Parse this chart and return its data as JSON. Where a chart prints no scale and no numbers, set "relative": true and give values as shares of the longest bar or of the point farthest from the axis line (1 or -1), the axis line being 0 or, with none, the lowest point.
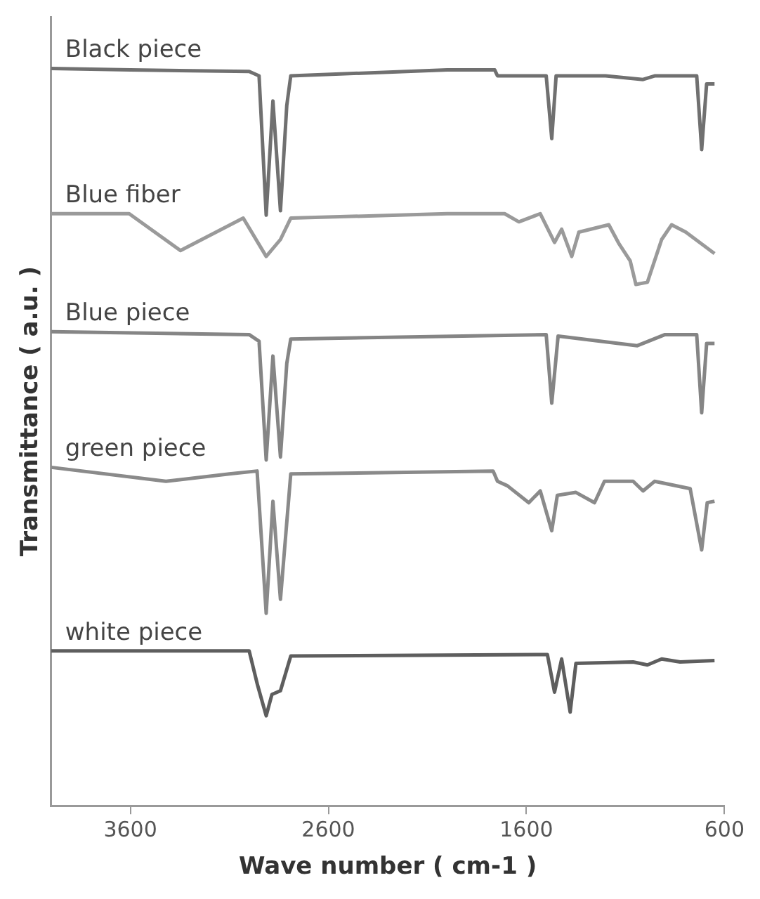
{
  "chart_data": {
    "type": "line",
    "xlabel": "Wave number ( cm-1 )",
    "ylabel": "Transmittance ( a.u. )",
    "relative": true,
    "xlim": [
      4000,
      600
    ],
    "xticks": [
      3600,
      2600,
      1600,
      600
    ],
    "grid": false,
    "legend": false,
    "marker": "none",
    "line_style": "solid",
    "series": [
      {
        "name": "Black piece",
        "color": "#707070",
        "x": [
          4000,
          3600,
          3000,
          2950,
          2914,
          2880,
          2842,
          2810,
          2790,
          2000,
          1760,
          1746,
          1500,
          1472,
          1450,
          1200,
          1011,
          950,
          740,
          715,
          690,
          650
        ],
        "values": [
          1.0,
          0.998,
          0.996,
          0.99,
          0.801,
          0.956,
          0.807,
          0.95,
          0.99,
          0.998,
          0.998,
          0.99,
          0.99,
          0.905,
          0.99,
          0.99,
          0.985,
          0.99,
          0.99,
          0.89,
          0.979,
          0.979
        ]
      },
      {
        "name": "Blue fiber",
        "color": "#9a9a9a",
        "x": [
          4000,
          3606,
          3347,
          3030,
          2914,
          2842,
          2790,
          2000,
          1710,
          1638,
          1530,
          1458,
          1422,
          1371,
          1335,
          1184,
          1134,
          1076,
          1047,
          989,
          917,
          867,
          795,
          650
        ],
        "values": [
          0.803,
          0.803,
          0.753,
          0.797,
          0.745,
          0.768,
          0.797,
          0.803,
          0.803,
          0.792,
          0.803,
          0.764,
          0.782,
          0.745,
          0.778,
          0.788,
          0.763,
          0.739,
          0.707,
          0.71,
          0.768,
          0.788,
          0.778,
          0.749
        ]
      },
      {
        "name": "Blue piece",
        "color": "#858585",
        "x": [
          4000,
          3000,
          2950,
          2914,
          2880,
          2842,
          2810,
          2790,
          1500,
          1472,
          1440,
          1040,
          900,
          740,
          715,
          690,
          650
        ],
        "values": [
          0.643,
          0.639,
          0.63,
          0.469,
          0.61,
          0.473,
          0.6,
          0.633,
          0.639,
          0.546,
          0.637,
          0.624,
          0.639,
          0.639,
          0.533,
          0.627,
          0.627
        ]
      },
      {
        "name": "green piece",
        "color": "#8a8a8a",
        "x": [
          4000,
          3420,
          3100,
          2960,
          2914,
          2880,
          2842,
          2790,
          1768,
          1746,
          1696,
          1588,
          1530,
          1472,
          1444,
          1350,
          1256,
          1206,
          1061,
          1011,
          953,
          773,
          715,
          687,
          650
        ],
        "values": [
          0.459,
          0.44,
          0.45,
          0.454,
          0.261,
          0.413,
          0.28,
          0.45,
          0.454,
          0.44,
          0.434,
          0.411,
          0.427,
          0.373,
          0.421,
          0.425,
          0.411,
          0.44,
          0.44,
          0.427,
          0.44,
          0.43,
          0.347,
          0.411,
          0.413
        ]
      },
      {
        "name": "white piece",
        "color": "#5e5e5e",
        "x": [
          4000,
          3000,
          2958,
          2914,
          2885,
          2842,
          2790,
          1494,
          1458,
          1422,
          1379,
          1350,
          1061,
          989,
          917,
          824,
          650
        ],
        "values": [
          0.21,
          0.21,
          0.164,
          0.122,
          0.151,
          0.156,
          0.203,
          0.205,
          0.154,
          0.199,
          0.127,
          0.193,
          0.195,
          0.191,
          0.199,
          0.195,
          0.197
        ]
      }
    ]
  }
}
